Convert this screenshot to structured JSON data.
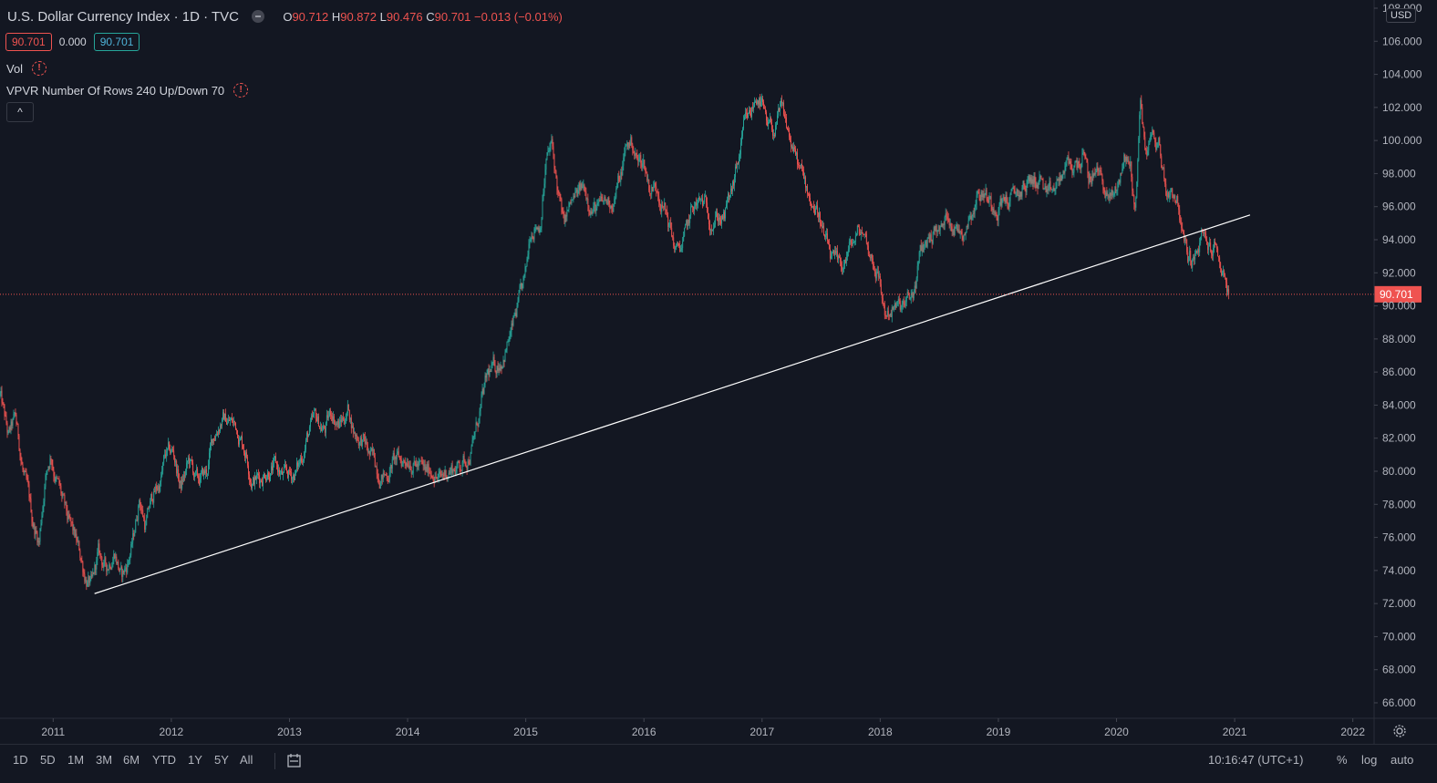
{
  "header": {
    "title": "U.S. Dollar Currency Index · 1D · TVC",
    "ohlc": {
      "o_label": "O",
      "o": "90.712",
      "h_label": "H",
      "h": "90.872",
      "l_label": "L",
      "l": "90.476",
      "c_label": "C",
      "c": "90.701",
      "change": "−0.013 (−0.01%)"
    },
    "price_box_bid": "90.701",
    "spread": "0.000",
    "price_box_ask": "90.701",
    "indicator_vol": "Vol",
    "indicator_vpvr": "VPVR Number Of Rows 240 Up/Down 70",
    "collapse_icon": "^"
  },
  "currency_badge": "USD",
  "colors": {
    "background": "#131722",
    "up": "#26a69a",
    "down": "#ef5350",
    "trendline": "#ffffff",
    "last_price_line": "#ef5350",
    "axis_text": "#b2b5be"
  },
  "chart_data": {
    "type": "candlestick",
    "title": "U.S. Dollar Currency Index",
    "interval": "1D",
    "source": "TVC",
    "ylim": [
      65,
      108
    ],
    "y_ticks": [
      "66.000",
      "68.000",
      "70.000",
      "72.000",
      "74.000",
      "76.000",
      "78.000",
      "80.000",
      "82.000",
      "84.000",
      "86.000",
      "88.000",
      "90.000",
      "92.000",
      "94.000",
      "96.000",
      "98.000",
      "100.000",
      "102.000",
      "104.000",
      "106.000",
      "108.000"
    ],
    "x_ticks": [
      "2011",
      "2012",
      "2013",
      "2014",
      "2015",
      "2016",
      "2017",
      "2018",
      "2019",
      "2020",
      "2021",
      "2022"
    ],
    "xlim": [
      2010.55,
      2022.18
    ],
    "last_price": 90.701,
    "last_price_label": "90.701",
    "close_series": [
      [
        2010.55,
        84.6
      ],
      [
        2010.62,
        81.9
      ],
      [
        2010.68,
        83.0
      ],
      [
        2010.75,
        79.8
      ],
      [
        2010.82,
        77.0
      ],
      [
        2010.88,
        75.8
      ],
      [
        2010.93,
        79.6
      ],
      [
        2010.98,
        81.2
      ],
      [
        2011.0,
        80.5
      ],
      [
        2011.05,
        79.0
      ],
      [
        2011.12,
        76.8
      ],
      [
        2011.2,
        75.4
      ],
      [
        2011.27,
        73.8
      ],
      [
        2011.33,
        72.9
      ],
      [
        2011.38,
        74.8
      ],
      [
        2011.45,
        74.0
      ],
      [
        2011.52,
        75.5
      ],
      [
        2011.58,
        73.6
      ],
      [
        2011.62,
        74.2
      ],
      [
        2011.68,
        75.9
      ],
      [
        2011.73,
        78.5
      ],
      [
        2011.78,
        76.8
      ],
      [
        2011.85,
        78.6
      ],
      [
        2011.9,
        79.2
      ],
      [
        2011.95,
        80.8
      ],
      [
        2012.02,
        81.0
      ],
      [
        2012.08,
        79.0
      ],
      [
        2012.15,
        80.5
      ],
      [
        2012.22,
        79.2
      ],
      [
        2012.3,
        79.8
      ],
      [
        2012.35,
        81.9
      ],
      [
        2012.42,
        83.3
      ],
      [
        2012.5,
        83.0
      ],
      [
        2012.56,
        82.6
      ],
      [
        2012.63,
        81.4
      ],
      [
        2012.68,
        79.8
      ],
      [
        2012.75,
        79.6
      ],
      [
        2012.82,
        80.4
      ],
      [
        2012.88,
        80.2
      ],
      [
        2012.95,
        79.5
      ],
      [
        2013.02,
        79.7
      ],
      [
        2013.08,
        80.3
      ],
      [
        2013.15,
        82.2
      ],
      [
        2013.22,
        82.9
      ],
      [
        2013.3,
        82.5
      ],
      [
        2013.36,
        83.6
      ],
      [
        2013.42,
        82.8
      ],
      [
        2013.5,
        83.8
      ],
      [
        2013.55,
        82.4
      ],
      [
        2013.62,
        81.9
      ],
      [
        2013.68,
        80.8
      ],
      [
        2013.75,
        80.2
      ],
      [
        2013.82,
        79.8
      ],
      [
        2013.88,
        80.7
      ],
      [
        2013.95,
        80.5
      ],
      [
        2014.02,
        81.1
      ],
      [
        2014.08,
        80.5
      ],
      [
        2014.15,
        79.7
      ],
      [
        2014.22,
        80.2
      ],
      [
        2014.28,
        79.4
      ],
      [
        2014.35,
        80.2
      ],
      [
        2014.42,
        80.3
      ],
      [
        2014.5,
        80.8
      ],
      [
        2014.56,
        81.9
      ],
      [
        2014.62,
        83.8
      ],
      [
        2014.68,
        85.6
      ],
      [
        2014.75,
        86.2
      ],
      [
        2014.82,
        87.4
      ],
      [
        2014.88,
        88.4
      ],
      [
        2014.95,
        90.2
      ],
      [
        2015.0,
        91.5
      ],
      [
        2015.04,
        94.6
      ],
      [
        2015.08,
        95.2
      ],
      [
        2015.12,
        95.1
      ],
      [
        2015.17,
        98.8
      ],
      [
        2015.22,
        99.6
      ],
      [
        2015.27,
        96.9
      ],
      [
        2015.32,
        94.8
      ],
      [
        2015.38,
        95.9
      ],
      [
        2015.44,
        96.6
      ],
      [
        2015.5,
        97.1
      ],
      [
        2015.56,
        96.2
      ],
      [
        2015.62,
        95.8
      ],
      [
        2015.68,
        96.1
      ],
      [
        2015.74,
        96.5
      ],
      [
        2015.8,
        97.7
      ],
      [
        2015.85,
        99.6
      ],
      [
        2015.9,
        99.9
      ],
      [
        2015.95,
        98.7
      ],
      [
        2016.0,
        98.7
      ],
      [
        2016.05,
        97.2
      ],
      [
        2016.12,
        97.3
      ],
      [
        2016.2,
        95.3
      ],
      [
        2016.28,
        93.1
      ],
      [
        2016.35,
        94.1
      ],
      [
        2016.42,
        95.9
      ],
      [
        2016.5,
        96.1
      ],
      [
        2016.56,
        95.5
      ],
      [
        2016.62,
        95.6
      ],
      [
        2016.68,
        95.3
      ],
      [
        2016.75,
        96.9
      ],
      [
        2016.8,
        98.6
      ],
      [
        2016.85,
        100.6
      ],
      [
        2016.9,
        101.2
      ],
      [
        2016.96,
        102.9
      ],
      [
        2017.0,
        102.2
      ],
      [
        2017.04,
        100.4
      ],
      [
        2017.1,
        100.6
      ],
      [
        2017.16,
        101.6
      ],
      [
        2017.22,
        100.4
      ],
      [
        2017.28,
        99.0
      ],
      [
        2017.35,
        97.4
      ],
      [
        2017.42,
        96.4
      ],
      [
        2017.48,
        95.7
      ],
      [
        2017.54,
        93.6
      ],
      [
        2017.6,
        92.5
      ],
      [
        2017.66,
        91.9
      ],
      [
        2017.72,
        93.1
      ],
      [
        2017.78,
        93.9
      ],
      [
        2017.85,
        94.6
      ],
      [
        2017.92,
        93.1
      ],
      [
        2017.98,
        92.1
      ],
      [
        2018.04,
        89.5
      ],
      [
        2018.1,
        89.9
      ],
      [
        2018.16,
        89.7
      ],
      [
        2018.22,
        89.9
      ],
      [
        2018.28,
        90.6
      ],
      [
        2018.34,
        93.0
      ],
      [
        2018.4,
        94.0
      ],
      [
        2018.46,
        94.7
      ],
      [
        2018.52,
        94.5
      ],
      [
        2018.58,
        95.6
      ],
      [
        2018.64,
        94.8
      ],
      [
        2018.7,
        94.6
      ],
      [
        2018.76,
        95.8
      ],
      [
        2018.82,
        96.8
      ],
      [
        2018.88,
        97.0
      ],
      [
        2018.94,
        96.2
      ],
      [
        2019.0,
        96.4
      ],
      [
        2019.06,
        96.6
      ],
      [
        2019.12,
        96.4
      ],
      [
        2019.18,
        96.8
      ],
      [
        2019.24,
        97.3
      ],
      [
        2019.3,
        97.6
      ],
      [
        2019.36,
        97.7
      ],
      [
        2019.42,
        96.1
      ],
      [
        2019.48,
        96.9
      ],
      [
        2019.54,
        97.9
      ],
      [
        2019.6,
        98.4
      ],
      [
        2019.66,
        98.4
      ],
      [
        2019.72,
        99.2
      ],
      [
        2019.76,
        97.4
      ],
      [
        2019.82,
        98.3
      ],
      [
        2019.88,
        97.6
      ],
      [
        2019.94,
        96.4
      ],
      [
        2020.0,
        96.8
      ],
      [
        2020.06,
        98.9
      ],
      [
        2020.12,
        98.5
      ],
      [
        2020.16,
        95.3
      ],
      [
        2020.2,
        102.8
      ],
      [
        2020.24,
        99.4
      ],
      [
        2020.3,
        100.2
      ],
      [
        2020.36,
        99.7
      ],
      [
        2020.42,
        97.0
      ],
      [
        2020.48,
        97.1
      ],
      [
        2020.52,
        96.5
      ],
      [
        2020.56,
        94.2
      ],
      [
        2020.6,
        93.0
      ],
      [
        2020.66,
        92.6
      ],
      [
        2020.72,
        94.0
      ],
      [
        2020.78,
        93.5
      ],
      [
        2020.84,
        93.4
      ],
      [
        2020.88,
        92.4
      ],
      [
        2020.92,
        91.8
      ],
      [
        2020.95,
        90.701
      ]
    ],
    "trendline": {
      "start": [
        2011.35,
        72.6
      ],
      "end": [
        2021.13,
        95.5
      ],
      "color": "#ffffff"
    }
  },
  "bottom_bar": {
    "timeframes": [
      "1D",
      "5D",
      "1M",
      "3M",
      "6M",
      "YTD",
      "1Y",
      "5Y",
      "All"
    ],
    "clock": "10:16:47 (UTC+1)",
    "percent": "%",
    "log": "log",
    "auto": "auto"
  }
}
